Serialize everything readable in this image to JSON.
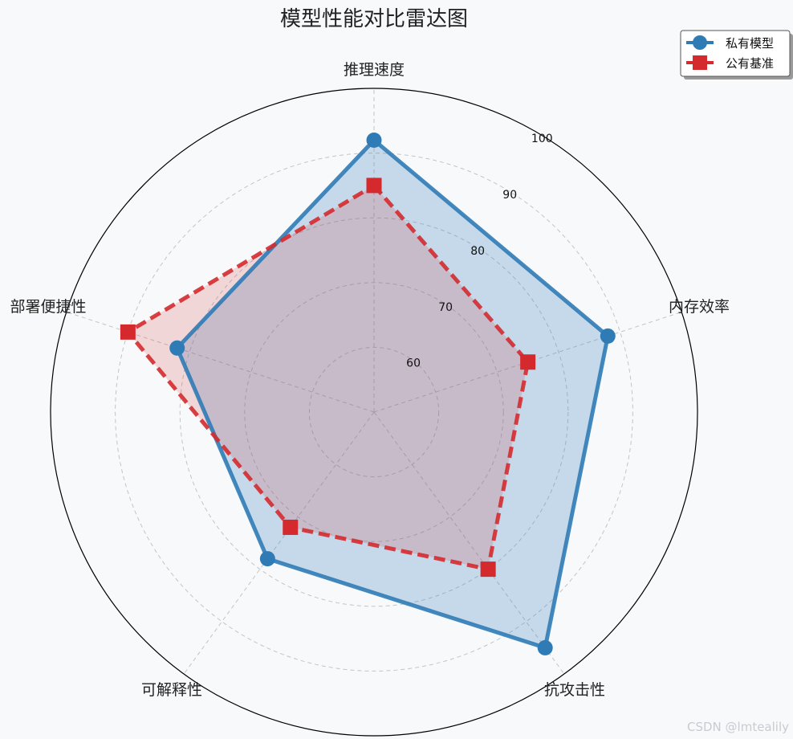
{
  "chart_data": {
    "type": "radar",
    "title": "模型性能对比雷达图",
    "categories": [
      "推理速度",
      "内存效率",
      "抗攻击性",
      "可解释性",
      "部署便捷性"
    ],
    "series": [
      {
        "name": "私有模型",
        "values": [
          92,
          88,
          95,
          78,
          82
        ],
        "color": "#2f7bb6",
        "marker": "circle",
        "linestyle": "solid"
      },
      {
        "name": "公有基准",
        "values": [
          85,
          75,
          80,
          72,
          90
        ],
        "color": "#d42a2e",
        "marker": "square",
        "linestyle": "dashed"
      }
    ],
    "rticks": [
      60,
      70,
      80,
      90,
      100
    ],
    "rlim": [
      50,
      100
    ],
    "grid": true,
    "legend_position": "top-right"
  },
  "watermark": "CSDN @lmtealily"
}
